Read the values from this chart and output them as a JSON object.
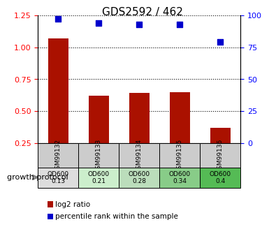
{
  "title": "GDS2592 / 462",
  "samples": [
    "GSM99132",
    "GSM99133",
    "GSM99134",
    "GSM99135",
    "GSM99136"
  ],
  "log2_ratio": [
    1.07,
    0.62,
    0.64,
    0.65,
    0.37
  ],
  "percentile_rank": [
    97,
    94,
    93,
    93,
    79
  ],
  "bar_color": "#aa1100",
  "dot_color": "#0000cc",
  "ylim_left": [
    0.25,
    1.25
  ],
  "ylim_right": [
    0,
    100
  ],
  "yticks_left": [
    0.25,
    0.5,
    0.75,
    1.0,
    1.25
  ],
  "yticks_right": [
    0,
    25,
    50,
    75,
    100
  ],
  "protocol_label": "growth protocol",
  "protocol_values": [
    "OD600\n0.13",
    "OD600\n0.21",
    "OD600\n0.28",
    "OD600\n0.34",
    "OD600\n0.4"
  ],
  "protocol_colors": [
    "#dddddd",
    "#cceecc",
    "#bbddbb",
    "#88cc88",
    "#55bb55"
  ],
  "sample_bg": "#cccccc",
  "legend_red": "log2 ratio",
  "legend_blue": "percentile rank within the sample"
}
